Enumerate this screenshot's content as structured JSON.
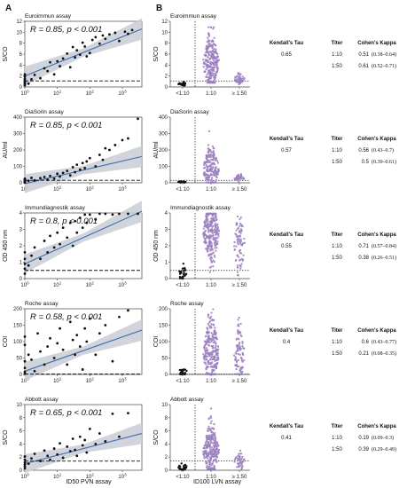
{
  "panels": {
    "left_letter": "A",
    "right_letter": "B"
  },
  "left_xlabel": "ID50 PVN assay",
  "right_xlabel": "ID100 LVN assay",
  "table_headers": {
    "tau": "Kendall's Tau",
    "titer": "Titer",
    "kappa": "Cohen's Kappa"
  },
  "chart_data": [
    {
      "type": "scatter",
      "title": "Euroimmun assay",
      "ylabel": "S/CO",
      "ylim": [
        0,
        12
      ],
      "yticks": [
        0,
        2,
        4,
        6,
        8,
        10,
        12
      ],
      "stat": "R = 0.85, p < 0.001",
      "stat_R": "R = 0.85, ",
      "stat_p": "p",
      "stat_rest": " < 0.001",
      "cutoff": 1.1,
      "fit": {
        "start": 2.0,
        "end": 10.6
      },
      "points": [
        [
          1,
          0.3
        ],
        [
          1,
          0.5
        ],
        [
          1,
          0.8
        ],
        [
          1,
          1.0
        ],
        [
          1,
          1.2
        ],
        [
          1,
          1.5
        ],
        [
          1,
          1.9
        ],
        [
          1,
          2.3
        ],
        [
          1.3,
          0.6
        ],
        [
          1.6,
          1.4
        ],
        [
          2,
          2.2
        ],
        [
          3,
          1.6
        ],
        [
          4,
          3.4
        ],
        [
          5,
          2.9
        ],
        [
          6,
          4.5
        ],
        [
          8,
          2.3
        ],
        [
          10,
          4.7
        ],
        [
          12,
          3.8
        ],
        [
          15,
          5.2
        ],
        [
          20,
          6.1
        ],
        [
          25,
          3.6
        ],
        [
          30,
          7.3
        ],
        [
          35,
          5.4
        ],
        [
          40,
          6.7
        ],
        [
          50,
          5.9
        ],
        [
          60,
          8.1
        ],
        [
          70,
          7.4
        ],
        [
          80,
          5.6
        ],
        [
          100,
          6.2
        ],
        [
          120,
          8.6
        ],
        [
          150,
          9.1
        ],
        [
          200,
          7.9
        ],
        [
          250,
          9.4
        ],
        [
          300,
          8.8
        ],
        [
          400,
          9.6
        ],
        [
          600,
          9.9
        ],
        [
          800,
          8.4
        ],
        [
          1200,
          10.1
        ],
        [
          1500,
          9.7
        ],
        [
          2000,
          10.4
        ]
      ],
      "violin": {
        "categories": [
          "<1:10",
          "1:10",
          "≥ 1:50"
        ],
        "ylim": [
          0,
          12
        ],
        "yticks": [
          0,
          2,
          4,
          6,
          8,
          10,
          12
        ],
        "cutoff": 1.1,
        "groups": [
          {
            "mean": 0.6,
            "sd": 0.25,
            "n": 30,
            "lo": 0.1,
            "hi": 1.6
          },
          {
            "mean": 4.5,
            "sd": 2.6,
            "n": 260,
            "lo": 0.8,
            "hi": 10.9
          },
          {
            "mean": 1.5,
            "sd": 0.5,
            "n": 45,
            "lo": 0.4,
            "hi": 3.1
          }
        ]
      },
      "tau": "0.65",
      "rows": [
        {
          "titer": "1:10",
          "kappa": "0.51",
          "ci": "(0.38–0.64)"
        },
        {
          "titer": "1:50",
          "kappa": "0.61",
          "ci": "(0.52–0.71)"
        }
      ]
    },
    {
      "type": "scatter",
      "title": "DiaSorin assay",
      "ylabel": "AU/ml",
      "ylim": [
        0,
        400
      ],
      "yticks": [
        0,
        100,
        200,
        300,
        400
      ],
      "stat": "R = 0.85, p < 0.001",
      "stat_R": "R = 0.85, ",
      "stat_p": "p",
      "stat_rest": " < 0.001",
      "cutoff": 15,
      "fit": {
        "start": -5,
        "end": 160
      },
      "points": [
        [
          1,
          2
        ],
        [
          1,
          5
        ],
        [
          1,
          9
        ],
        [
          1,
          14
        ],
        [
          1,
          20
        ],
        [
          1,
          25
        ],
        [
          1.3,
          12
        ],
        [
          1.6,
          30
        ],
        [
          2,
          15
        ],
        [
          3,
          28
        ],
        [
          4,
          35
        ],
        [
          5,
          18
        ],
        [
          6,
          42
        ],
        [
          8,
          25
        ],
        [
          10,
          55
        ],
        [
          12,
          38
        ],
        [
          15,
          60
        ],
        [
          20,
          72
        ],
        [
          25,
          45
        ],
        [
          30,
          95
        ],
        [
          35,
          65
        ],
        [
          40,
          110
        ],
        [
          50,
          80
        ],
        [
          60,
          120
        ],
        [
          70,
          90
        ],
        [
          80,
          130
        ],
        [
          100,
          150
        ],
        [
          150,
          100
        ],
        [
          200,
          170
        ],
        [
          250,
          140
        ],
        [
          300,
          210
        ],
        [
          400,
          200
        ],
        [
          600,
          230
        ],
        [
          1000,
          260
        ],
        [
          1500,
          270
        ],
        [
          3000,
          390
        ]
      ],
      "violin": {
        "categories": [
          "<1:10",
          "1:10",
          "≥ 1:50"
        ],
        "ylim": [
          0,
          400
        ],
        "yticks": [
          0,
          100,
          200,
          300,
          400
        ],
        "cutoff": 15,
        "groups": [
          {
            "mean": 5,
            "sd": 3,
            "n": 18,
            "lo": 1,
            "hi": 14
          },
          {
            "mean": 85,
            "sd": 70,
            "n": 190,
            "lo": 2,
            "hi": 390
          },
          {
            "mean": 28,
            "sd": 12,
            "n": 35,
            "lo": 5,
            "hi": 60
          }
        ]
      },
      "tau": "0.57",
      "rows": [
        {
          "titer": "1:10",
          "kappa": "0.56",
          "ci": "(0.43–0.7)"
        },
        {
          "titer": "1:50",
          "kappa": "0.5",
          "ci": "(0.39–0.61)"
        }
      ]
    },
    {
      "type": "scatter",
      "title": "Immundiagnostik assay",
      "ylabel": "OD 450 nm",
      "ylim": [
        0,
        4
      ],
      "yticks": [
        0,
        1,
        2,
        3,
        4
      ],
      "stat": "R = 0.8, p < 0.001",
      "stat_R": "R = 0.8, ",
      "stat_p": "p",
      "stat_rest": " < 0.001",
      "cutoff": 0.5,
      "fit": {
        "start": 0.9,
        "end": 4.1
      },
      "points": [
        [
          1,
          0.3
        ],
        [
          1,
          0.6
        ],
        [
          1,
          0.9
        ],
        [
          1,
          1.2
        ],
        [
          1,
          1.6
        ],
        [
          1.3,
          0.8
        ],
        [
          1.6,
          1.4
        ],
        [
          2,
          1.9
        ],
        [
          3,
          1.2
        ],
        [
          4,
          2.3
        ],
        [
          5,
          1.6
        ],
        [
          6,
          2.6
        ],
        [
          8,
          1.9
        ],
        [
          10,
          2.8
        ],
        [
          12,
          2.1
        ],
        [
          15,
          3.1
        ],
        [
          20,
          2.5
        ],
        [
          25,
          3.4
        ],
        [
          30,
          2.0
        ],
        [
          35,
          3.5
        ],
        [
          40,
          2.8
        ],
        [
          50,
          3.7
        ],
        [
          60,
          3.1
        ],
        [
          70,
          3.9
        ],
        [
          80,
          3.4
        ],
        [
          100,
          3.9
        ],
        [
          150,
          3.6
        ],
        [
          200,
          3.95
        ],
        [
          300,
          3.95
        ],
        [
          500,
          3.9
        ],
        [
          800,
          3.95
        ],
        [
          1500,
          3.95
        ],
        [
          3000,
          3.95
        ]
      ],
      "violin": {
        "categories": [
          "<1:10",
          "1:10",
          "≥ 1:50"
        ],
        "ylim": [
          0,
          4
        ],
        "yticks": [
          0,
          1,
          2,
          3,
          4
        ],
        "cutoff": 0.5,
        "groups": [
          {
            "mean": 0.3,
            "sd": 0.25,
            "n": 30,
            "lo": 0.02,
            "hi": 1.2
          },
          {
            "mean": 2.8,
            "sd": 1.0,
            "n": 260,
            "lo": 0.4,
            "hi": 3.95
          },
          {
            "mean": 2.0,
            "sd": 1.0,
            "n": 80,
            "lo": 0.2,
            "hi": 3.95
          }
        ]
      },
      "tau": "0.55",
      "rows": [
        {
          "titer": "1:10",
          "kappa": "0.71",
          "ci": "(0.57–0.84)"
        },
        {
          "titer": "1:50",
          "kappa": "0.38",
          "ci": "(0.26–0.51)"
        }
      ]
    },
    {
      "type": "scatter",
      "title": "Roche assay",
      "ylabel": "COI",
      "ylim": [
        0,
        200
      ],
      "yticks": [
        0,
        50,
        100,
        150,
        200
      ],
      "stat": "R = 0.58, p < 0.001",
      "stat_R": "R = 0.58, ",
      "stat_p": "p",
      "stat_rest": " < 0.001",
      "cutoff": 1,
      "fit": {
        "start": 10,
        "end": 135
      },
      "points": [
        [
          1,
          2
        ],
        [
          1,
          8
        ],
        [
          1,
          20
        ],
        [
          1,
          40
        ],
        [
          1,
          90
        ],
        [
          1,
          115
        ],
        [
          1.3,
          60
        ],
        [
          1.6,
          45
        ],
        [
          2,
          10
        ],
        [
          2.5,
          125
        ],
        [
          3,
          70
        ],
        [
          4,
          30
        ],
        [
          5,
          85
        ],
        [
          6,
          110
        ],
        [
          8,
          50
        ],
        [
          10,
          95
        ],
        [
          12,
          140
        ],
        [
          15,
          75
        ],
        [
          20,
          30
        ],
        [
          25,
          160
        ],
        [
          30,
          105
        ],
        [
          35,
          60
        ],
        [
          40,
          120
        ],
        [
          50,
          85
        ],
        [
          60,
          15
        ],
        [
          70,
          140
        ],
        [
          80,
          100
        ],
        [
          100,
          170
        ],
        [
          150,
          60
        ],
        [
          200,
          125
        ],
        [
          300,
          150
        ],
        [
          500,
          40
        ],
        [
          800,
          175
        ],
        [
          1500,
          195
        ]
      ],
      "violin": {
        "categories": [
          "<1:10",
          "1:10",
          "≥ 1:50"
        ],
        "ylim": [
          0,
          200
        ],
        "yticks": [
          0,
          50,
          100,
          150,
          200
        ],
        "cutoff": 1,
        "groups": [
          {
            "mean": 8,
            "sd": 6,
            "n": 22,
            "lo": 0.5,
            "hi": 25
          },
          {
            "mean": 70,
            "sd": 55,
            "n": 260,
            "lo": 0.5,
            "hi": 210
          },
          {
            "mean": 55,
            "sd": 45,
            "n": 90,
            "lo": 0.5,
            "hi": 225
          }
        ]
      },
      "tau": "0.4",
      "rows": [
        {
          "titer": "1:10",
          "kappa": "0.6",
          "ci": "(0.43–0.77)"
        },
        {
          "titer": "1:50",
          "kappa": "0.21",
          "ci": "(0.08–0.35)"
        }
      ]
    },
    {
      "type": "scatter",
      "title": "Abbott assay",
      "ylabel": "S/CO",
      "ylim": [
        0,
        10
      ],
      "yticks": [
        0,
        2,
        4,
        6,
        8,
        10
      ],
      "stat": "R = 0.65, p < 0.001",
      "stat_R": "R = 0.65, ",
      "stat_p": "p",
      "stat_rest": " < 0.001",
      "cutoff": 1.4,
      "fit": {
        "start": 1.0,
        "end": 5.6
      },
      "points": [
        [
          1,
          0.3
        ],
        [
          1,
          0.6
        ],
        [
          1,
          0.9
        ],
        [
          1,
          1.2
        ],
        [
          1,
          1.6
        ],
        [
          1,
          2.1
        ],
        [
          1.3,
          1.0
        ],
        [
          1.6,
          1.8
        ],
        [
          2,
          2.5
        ],
        [
          3,
          1.4
        ],
        [
          4,
          3.0
        ],
        [
          5,
          2.2
        ],
        [
          6,
          1.6
        ],
        [
          8,
          3.3
        ],
        [
          10,
          2.4
        ],
        [
          12,
          4.1
        ],
        [
          15,
          1.9
        ],
        [
          20,
          3.6
        ],
        [
          25,
          2.9
        ],
        [
          30,
          4.8
        ],
        [
          35,
          3.1
        ],
        [
          40,
          2.2
        ],
        [
          50,
          5.1
        ],
        [
          60,
          3.8
        ],
        [
          70,
          4.6
        ],
        [
          80,
          2.7
        ],
        [
          100,
          6.3
        ],
        [
          150,
          4.0
        ],
        [
          200,
          5.6
        ],
        [
          300,
          4.4
        ],
        [
          500,
          8.6
        ],
        [
          800,
          5.1
        ],
        [
          1500,
          8.7
        ]
      ],
      "violin": {
        "categories": [
          "<1:10",
          "1:10",
          "≥ 1:50"
        ],
        "ylim": [
          0,
          10
        ],
        "yticks": [
          0,
          2,
          4,
          6,
          8,
          10
        ],
        "cutoff": 1.4,
        "groups": [
          {
            "mean": 0.5,
            "sd": 0.3,
            "n": 28,
            "lo": 0.05,
            "hi": 1.8
          },
          {
            "mean": 3.0,
            "sd": 2.0,
            "n": 260,
            "lo": 0.2,
            "hi": 9.4
          },
          {
            "mean": 1.3,
            "sd": 0.7,
            "n": 45,
            "lo": 0.2,
            "hi": 3.0
          }
        ]
      },
      "tau": "0.41",
      "rows": [
        {
          "titer": "1:10",
          "kappa": "0.19",
          "ci": "(0.09–0.3)"
        },
        {
          "titer": "1:50",
          "kappa": "0.39",
          "ci": "(0.29–0.49)"
        }
      ]
    }
  ],
  "colors": {
    "violin": "#9b7fc0",
    "point": "#111111",
    "fit": "#3b6fb3",
    "band": "#c9ccd3"
  }
}
